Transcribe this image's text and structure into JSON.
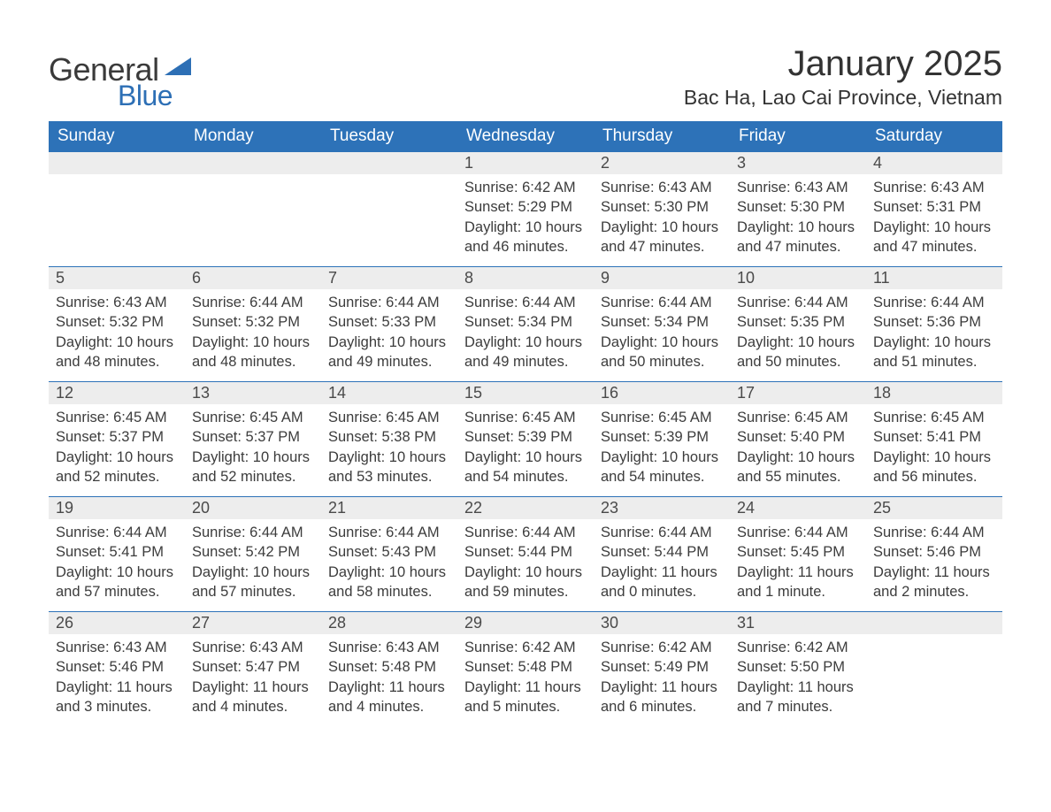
{
  "brand": {
    "word1": "General",
    "word2": "Blue",
    "accent_color": "#2d6fb5"
  },
  "title": {
    "month": "January 2025",
    "location": "Bac Ha, Lao Cai Province, Vietnam"
  },
  "colors": {
    "header_bg": "#2d72b8",
    "header_text": "#ffffff",
    "daynum_bg": "#ededed",
    "row_border": "#2d72b8",
    "body_text": "#3c3c3c",
    "page_bg": "#ffffff"
  },
  "weekdays": [
    "Sunday",
    "Monday",
    "Tuesday",
    "Wednesday",
    "Thursday",
    "Friday",
    "Saturday"
  ],
  "weeks": [
    [
      {
        "empty": true
      },
      {
        "empty": true
      },
      {
        "empty": true
      },
      {
        "n": "1",
        "sunrise": "Sunrise: 6:42 AM",
        "sunset": "Sunset: 5:29 PM",
        "d1": "Daylight: 10 hours",
        "d2": "and 46 minutes."
      },
      {
        "n": "2",
        "sunrise": "Sunrise: 6:43 AM",
        "sunset": "Sunset: 5:30 PM",
        "d1": "Daylight: 10 hours",
        "d2": "and 47 minutes."
      },
      {
        "n": "3",
        "sunrise": "Sunrise: 6:43 AM",
        "sunset": "Sunset: 5:30 PM",
        "d1": "Daylight: 10 hours",
        "d2": "and 47 minutes."
      },
      {
        "n": "4",
        "sunrise": "Sunrise: 6:43 AM",
        "sunset": "Sunset: 5:31 PM",
        "d1": "Daylight: 10 hours",
        "d2": "and 47 minutes."
      }
    ],
    [
      {
        "n": "5",
        "sunrise": "Sunrise: 6:43 AM",
        "sunset": "Sunset: 5:32 PM",
        "d1": "Daylight: 10 hours",
        "d2": "and 48 minutes."
      },
      {
        "n": "6",
        "sunrise": "Sunrise: 6:44 AM",
        "sunset": "Sunset: 5:32 PM",
        "d1": "Daylight: 10 hours",
        "d2": "and 48 minutes."
      },
      {
        "n": "7",
        "sunrise": "Sunrise: 6:44 AM",
        "sunset": "Sunset: 5:33 PM",
        "d1": "Daylight: 10 hours",
        "d2": "and 49 minutes."
      },
      {
        "n": "8",
        "sunrise": "Sunrise: 6:44 AM",
        "sunset": "Sunset: 5:34 PM",
        "d1": "Daylight: 10 hours",
        "d2": "and 49 minutes."
      },
      {
        "n": "9",
        "sunrise": "Sunrise: 6:44 AM",
        "sunset": "Sunset: 5:34 PM",
        "d1": "Daylight: 10 hours",
        "d2": "and 50 minutes."
      },
      {
        "n": "10",
        "sunrise": "Sunrise: 6:44 AM",
        "sunset": "Sunset: 5:35 PM",
        "d1": "Daylight: 10 hours",
        "d2": "and 50 minutes."
      },
      {
        "n": "11",
        "sunrise": "Sunrise: 6:44 AM",
        "sunset": "Sunset: 5:36 PM",
        "d1": "Daylight: 10 hours",
        "d2": "and 51 minutes."
      }
    ],
    [
      {
        "n": "12",
        "sunrise": "Sunrise: 6:45 AM",
        "sunset": "Sunset: 5:37 PM",
        "d1": "Daylight: 10 hours",
        "d2": "and 52 minutes."
      },
      {
        "n": "13",
        "sunrise": "Sunrise: 6:45 AM",
        "sunset": "Sunset: 5:37 PM",
        "d1": "Daylight: 10 hours",
        "d2": "and 52 minutes."
      },
      {
        "n": "14",
        "sunrise": "Sunrise: 6:45 AM",
        "sunset": "Sunset: 5:38 PM",
        "d1": "Daylight: 10 hours",
        "d2": "and 53 minutes."
      },
      {
        "n": "15",
        "sunrise": "Sunrise: 6:45 AM",
        "sunset": "Sunset: 5:39 PM",
        "d1": "Daylight: 10 hours",
        "d2": "and 54 minutes."
      },
      {
        "n": "16",
        "sunrise": "Sunrise: 6:45 AM",
        "sunset": "Sunset: 5:39 PM",
        "d1": "Daylight: 10 hours",
        "d2": "and 54 minutes."
      },
      {
        "n": "17",
        "sunrise": "Sunrise: 6:45 AM",
        "sunset": "Sunset: 5:40 PM",
        "d1": "Daylight: 10 hours",
        "d2": "and 55 minutes."
      },
      {
        "n": "18",
        "sunrise": "Sunrise: 6:45 AM",
        "sunset": "Sunset: 5:41 PM",
        "d1": "Daylight: 10 hours",
        "d2": "and 56 minutes."
      }
    ],
    [
      {
        "n": "19",
        "sunrise": "Sunrise: 6:44 AM",
        "sunset": "Sunset: 5:41 PM",
        "d1": "Daylight: 10 hours",
        "d2": "and 57 minutes."
      },
      {
        "n": "20",
        "sunrise": "Sunrise: 6:44 AM",
        "sunset": "Sunset: 5:42 PM",
        "d1": "Daylight: 10 hours",
        "d2": "and 57 minutes."
      },
      {
        "n": "21",
        "sunrise": "Sunrise: 6:44 AM",
        "sunset": "Sunset: 5:43 PM",
        "d1": "Daylight: 10 hours",
        "d2": "and 58 minutes."
      },
      {
        "n": "22",
        "sunrise": "Sunrise: 6:44 AM",
        "sunset": "Sunset: 5:44 PM",
        "d1": "Daylight: 10 hours",
        "d2": "and 59 minutes."
      },
      {
        "n": "23",
        "sunrise": "Sunrise: 6:44 AM",
        "sunset": "Sunset: 5:44 PM",
        "d1": "Daylight: 11 hours",
        "d2": "and 0 minutes."
      },
      {
        "n": "24",
        "sunrise": "Sunrise: 6:44 AM",
        "sunset": "Sunset: 5:45 PM",
        "d1": "Daylight: 11 hours",
        "d2": "and 1 minute."
      },
      {
        "n": "25",
        "sunrise": "Sunrise: 6:44 AM",
        "sunset": "Sunset: 5:46 PM",
        "d1": "Daylight: 11 hours",
        "d2": "and 2 minutes."
      }
    ],
    [
      {
        "n": "26",
        "sunrise": "Sunrise: 6:43 AM",
        "sunset": "Sunset: 5:46 PM",
        "d1": "Daylight: 11 hours",
        "d2": "and 3 minutes."
      },
      {
        "n": "27",
        "sunrise": "Sunrise: 6:43 AM",
        "sunset": "Sunset: 5:47 PM",
        "d1": "Daylight: 11 hours",
        "d2": "and 4 minutes."
      },
      {
        "n": "28",
        "sunrise": "Sunrise: 6:43 AM",
        "sunset": "Sunset: 5:48 PM",
        "d1": "Daylight: 11 hours",
        "d2": "and 4 minutes."
      },
      {
        "n": "29",
        "sunrise": "Sunrise: 6:42 AM",
        "sunset": "Sunset: 5:48 PM",
        "d1": "Daylight: 11 hours",
        "d2": "and 5 minutes."
      },
      {
        "n": "30",
        "sunrise": "Sunrise: 6:42 AM",
        "sunset": "Sunset: 5:49 PM",
        "d1": "Daylight: 11 hours",
        "d2": "and 6 minutes."
      },
      {
        "n": "31",
        "sunrise": "Sunrise: 6:42 AM",
        "sunset": "Sunset: 5:50 PM",
        "d1": "Daylight: 11 hours",
        "d2": "and 7 minutes."
      },
      {
        "empty": true
      }
    ]
  ]
}
